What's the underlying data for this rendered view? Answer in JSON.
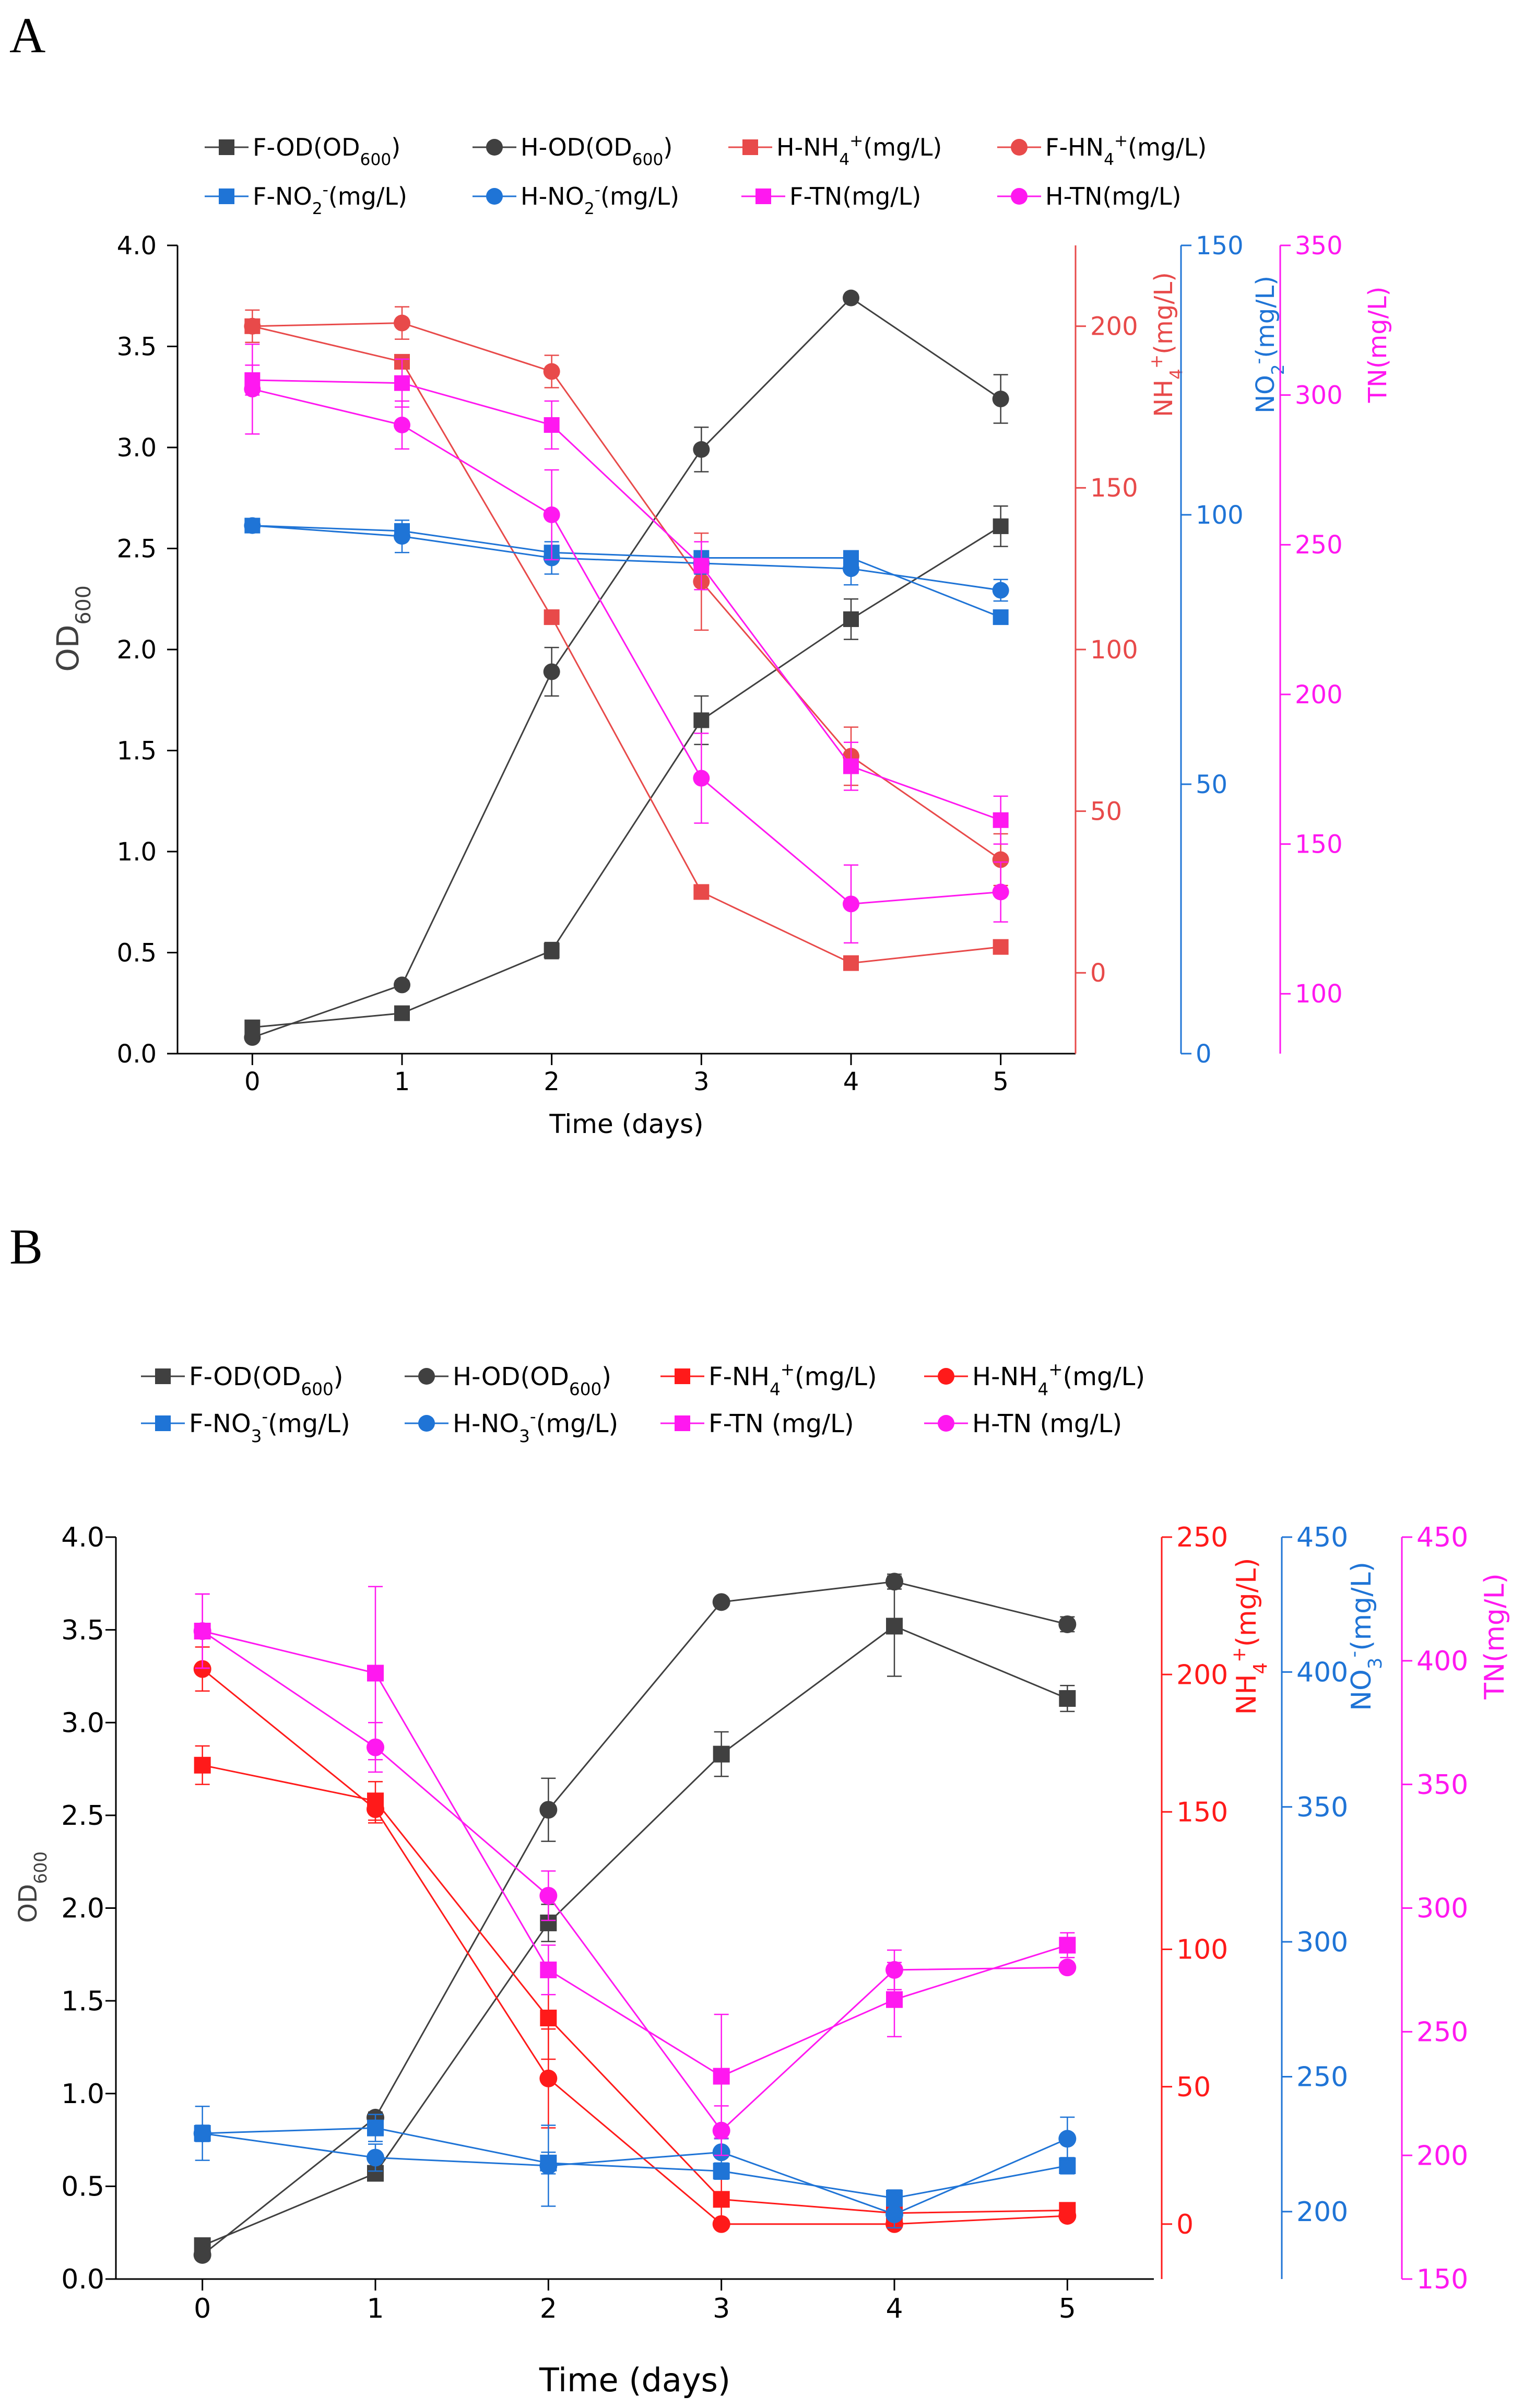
{
  "colors": {
    "od": "#404040",
    "nh4_A": "#E84A4A",
    "nh4_B": "#FF1A1A",
    "no2": "#1F74D6",
    "tn": "#FF18F0",
    "axis": "#000000"
  },
  "chart_data": [
    {
      "panel_label": "A",
      "type": "line",
      "xlabel": "Time (days)",
      "x": [
        0,
        1,
        2,
        3,
        4,
        5
      ],
      "xlim": [
        -0.5,
        5.5
      ],
      "xticks": [
        "0",
        "1",
        "2",
        "3",
        "4",
        "5"
      ],
      "axes": {
        "od": {
          "label": "OD600",
          "label_main": "OD",
          "label_sub": "600",
          "ylim": [
            0,
            4.0
          ],
          "ticks": [
            "0.0",
            "0.5",
            "1.0",
            "1.5",
            "2.0",
            "2.5",
            "3.0",
            "3.5",
            "4.0"
          ]
        },
        "nh4": {
          "label": "NH4+(mg/L)",
          "label_main": "NH",
          "label_sub": "4",
          "label_sup": "+",
          "label_tail": "(mg/L)",
          "ylim": [
            -25,
            225
          ],
          "ticks": [
            "0",
            "50",
            "100",
            "150",
            "200"
          ]
        },
        "no": {
          "label": "NO2-(mg/L)",
          "label_main": "NO",
          "label_sub": "2",
          "label_sup": "-",
          "label_tail": "(mg/L)",
          "ylim": [
            0,
            150
          ],
          "ticks": [
            "0",
            "50",
            "100",
            "150"
          ]
        },
        "tn": {
          "label": "TN(mg/L)",
          "ylim": [
            80,
            350
          ],
          "ticks": [
            "100",
            "150",
            "200",
            "250",
            "300",
            "350"
          ]
        }
      },
      "legend": {
        "row1": [
          {
            "id": "F-OD",
            "text": "F-OD(OD",
            "sub": "600",
            "tail": ")"
          },
          {
            "id": "H-OD",
            "text": "H-OD(OD",
            "sub": "600",
            "tail": ")"
          },
          {
            "id": "H-NH4",
            "text": "H-NH",
            "sub": "4",
            "sup": "+",
            "tail": "(mg/L)"
          },
          {
            "id": "F-HN4",
            "text": "F-HN",
            "sub": "4",
            "sup": "+",
            "tail": "(mg/L)"
          }
        ],
        "row2": [
          {
            "id": "F-NO",
            "text": "F-NO",
            "sub": "2",
            "sup": "-",
            "tail": "(mg/L)"
          },
          {
            "id": "H-NO",
            "text": "H-NO",
            "sub": "2",
            "sup": "-",
            "tail": "(mg/L)"
          },
          {
            "id": "F-TN",
            "text": "F-TN(mg/L)"
          },
          {
            "id": "H-TN",
            "text": "H-TN(mg/L)"
          }
        ]
      },
      "series": [
        {
          "id": "F-OD",
          "name": "F-OD(OD600)",
          "axis": "od",
          "marker": "square",
          "color": "od",
          "values": [
            0.13,
            0.2,
            0.51,
            1.65,
            2.15,
            2.61
          ],
          "err": [
            0.02,
            0.02,
            0.04,
            0.12,
            0.1,
            0.1
          ]
        },
        {
          "id": "H-OD",
          "name": "H-OD(OD600)",
          "axis": "od",
          "marker": "circle",
          "color": "od",
          "values": [
            0.08,
            0.34,
            1.89,
            2.99,
            3.74,
            3.24
          ],
          "err": [
            0.01,
            0.02,
            0.12,
            0.11,
            0.0,
            0.12
          ]
        },
        {
          "id": "H-NH4",
          "name": "H-NH4+(mg/L)",
          "axis": "nh4",
          "marker": "square",
          "color": "nh4_A",
          "values": [
            200,
            189,
            110,
            25,
            3,
            8
          ],
          "err": [
            0,
            0,
            0,
            0,
            0,
            0
          ]
        },
        {
          "id": "F-HN4",
          "name": "F-HN4+(mg/L)",
          "axis": "nh4",
          "marker": "circle",
          "color": "nh4_A",
          "values": [
            200,
            201,
            186,
            121,
            67,
            35
          ],
          "err": [
            5,
            5,
            5,
            15,
            9,
            8
          ]
        },
        {
          "id": "F-NO",
          "name": "F-NO2-(mg/L)",
          "axis": "no",
          "marker": "square",
          "color": "no2",
          "values": [
            98,
            97,
            93,
            92,
            92,
            81
          ],
          "err": [
            0,
            0,
            0,
            0,
            0,
            0
          ]
        },
        {
          "id": "H-NO",
          "name": "H-NO2-(mg/L)",
          "axis": "no",
          "marker": "circle",
          "color": "no2",
          "values": [
            98,
            96,
            92,
            91,
            90,
            86
          ],
          "err": [
            1,
            3,
            3,
            2,
            3,
            2
          ]
        },
        {
          "id": "F-TN",
          "name": "F-TN(mg/L)",
          "axis": "tn",
          "marker": "square",
          "color": "tn",
          "values": [
            305,
            304,
            290,
            243,
            176,
            158
          ],
          "err": [
            5,
            8,
            8,
            8,
            8,
            8
          ]
        },
        {
          "id": "H-TN",
          "name": "H-TN(mg/L)",
          "axis": "tn",
          "marker": "circle",
          "color": "tn",
          "values": [
            302,
            290,
            260,
            172,
            130,
            134
          ],
          "err": [
            15,
            8,
            15,
            15,
            13,
            10
          ]
        }
      ]
    },
    {
      "panel_label": "B",
      "type": "line",
      "xlabel": "Time (days)",
      "x": [
        0,
        1,
        2,
        3,
        4,
        5
      ],
      "xlim": [
        -0.5,
        5.5
      ],
      "xticks": [
        "0",
        "1",
        "2",
        "3",
        "4",
        "5"
      ],
      "axes": {
        "od": {
          "label": "OD600",
          "label_main": "OD",
          "label_sub": "600",
          "ylim": [
            0,
            4.0
          ],
          "ticks": [
            "0.0",
            "0.5",
            "1.0",
            "1.5",
            "2.0",
            "2.5",
            "3.0",
            "3.5",
            "4.0"
          ]
        },
        "nh4": {
          "label": "NH4+(mg/L)",
          "label_main": "NH",
          "label_sub": "4",
          "label_sup": "+",
          "label_tail": "(mg/L)",
          "ylim": [
            -20,
            250
          ],
          "ticks": [
            "0",
            "50",
            "100",
            "150",
            "200",
            "250"
          ]
        },
        "no": {
          "label": "NO3-(mg/L)",
          "label_main": "NO",
          "label_sub": "3",
          "label_sup": "-",
          "label_tail": "(mg/L)",
          "ylim": [
            175,
            450
          ],
          "ticks": [
            "200",
            "250",
            "300",
            "350",
            "400",
            "450"
          ]
        },
        "tn": {
          "label": "TN(mg/L)",
          "ylim": [
            150,
            450
          ],
          "ticks": [
            "150",
            "200",
            "250",
            "300",
            "350",
            "400",
            "450"
          ]
        }
      },
      "legend": {
        "row1": [
          {
            "id": "F-OD",
            "text": "F-OD(OD",
            "sub": "600",
            "tail": ")"
          },
          {
            "id": "H-OD",
            "text": "H-OD(OD",
            "sub": "600",
            "tail": ")"
          },
          {
            "id": "F-NH4",
            "text": "F-NH",
            "sub": "4",
            "sup": "+",
            "tail": "(mg/L)"
          },
          {
            "id": "H-NH4",
            "text": "H-NH",
            "sub": "4",
            "sup": "+",
            "tail": "(mg/L)"
          }
        ],
        "row2": [
          {
            "id": "F-NO",
            "text": "F-NO",
            "sub": "3",
            "sup": "-",
            "tail": "(mg/L)"
          },
          {
            "id": "H-NO",
            "text": "H-NO",
            "sub": "3",
            "sup": "-",
            "tail": "(mg/L)"
          },
          {
            "id": "F-TN",
            "text": "F-TN (mg/L)"
          },
          {
            "id": "H-TN",
            "text": "H-TN (mg/L)"
          }
        ]
      },
      "series": [
        {
          "id": "F-OD",
          "name": "F-OD(OD600)",
          "axis": "od",
          "marker": "square",
          "color": "od",
          "values": [
            0.18,
            0.57,
            1.92,
            2.83,
            3.52,
            3.13
          ],
          "err": [
            0.02,
            0.02,
            0.1,
            0.12,
            0.27,
            0.07
          ]
        },
        {
          "id": "H-OD",
          "name": "H-OD(OD600)",
          "axis": "od",
          "marker": "circle",
          "color": "od",
          "values": [
            0.13,
            0.87,
            2.53,
            3.65,
            3.76,
            3.53
          ],
          "err": [
            0.01,
            0.03,
            0.17,
            0.0,
            0.04,
            0.04
          ]
        },
        {
          "id": "F-NH4",
          "name": "F-NH4+(mg/L)",
          "axis": "nh4",
          "marker": "square",
          "color": "nh4_B",
          "values": [
            167,
            154,
            75,
            9,
            4,
            5
          ],
          "err": [
            7,
            7,
            15,
            10,
            3,
            2
          ]
        },
        {
          "id": "H-NH4",
          "name": "H-NH4+(mg/L)",
          "axis": "nh4",
          "marker": "circle",
          "color": "nh4_B",
          "values": [
            202,
            151,
            53,
            0,
            0,
            3
          ],
          "err": [
            8,
            5,
            18,
            0,
            0,
            0
          ]
        },
        {
          "id": "F-NO",
          "name": "F-NO3-(mg/L)",
          "axis": "no",
          "marker": "square",
          "color": "no2",
          "values": [
            229,
            231,
            218,
            215,
            205,
            217
          ],
          "err": [
            3,
            5,
            4,
            3,
            3,
            3
          ]
        },
        {
          "id": "H-NO",
          "name": "H-NO3-(mg/L)",
          "axis": "no",
          "marker": "circle",
          "color": "no2",
          "values": [
            229,
            220,
            217,
            222,
            199,
            227
          ],
          "err": [
            10,
            5,
            15,
            5,
            5,
            8
          ]
        },
        {
          "id": "F-TN",
          "name": "F-TN (mg/L)",
          "axis": "tn",
          "marker": "square",
          "color": "tn",
          "values": [
            412,
            395,
            275,
            232,
            263,
            285
          ],
          "err": [
            15,
            35,
            10,
            25,
            15,
            5
          ]
        },
        {
          "id": "H-TN",
          "name": "H-TN (mg/L)",
          "axis": "tn",
          "marker": "circle",
          "color": "tn",
          "values": [
            412,
            365,
            305,
            210,
            275,
            276
          ],
          "err": [
            15,
            10,
            10,
            10,
            8,
            0
          ]
        }
      ]
    }
  ]
}
